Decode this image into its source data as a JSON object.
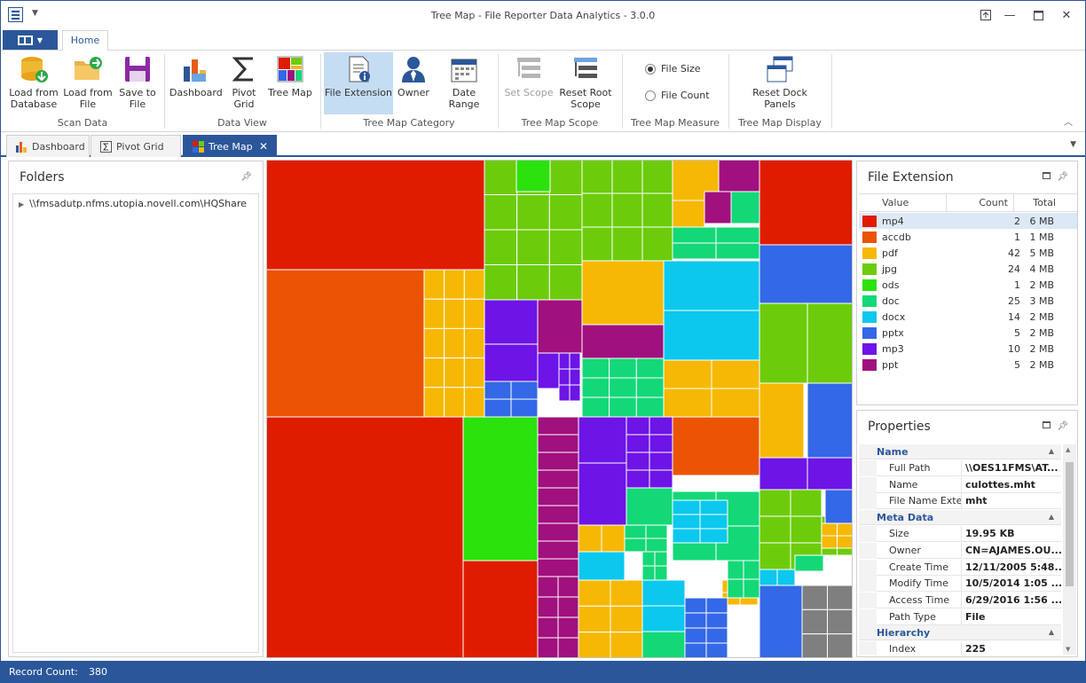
{
  "window": {
    "title": "Tree Map - File Reporter Data Analytics - 3.0.0"
  },
  "ribbon": {
    "tab_home": "Home",
    "scan_data": {
      "label": "Scan Data",
      "load_db": [
        "Load from",
        "Database"
      ],
      "load_file": [
        "Load from",
        "File"
      ],
      "save_file": [
        "Save to",
        "File"
      ]
    },
    "data_view": {
      "label": "Data View",
      "dashboard": "Dashboard",
      "pivot": [
        "Pivot",
        "Grid"
      ],
      "treemap": "Tree Map"
    },
    "category": {
      "label": "Tree Map Category",
      "file_extension": "File Extension",
      "owner": "Owner",
      "date_range": "Date Range"
    },
    "scope": {
      "label": "Tree Map Scope",
      "set_scope": "Set Scope",
      "reset_root": [
        "Reset Root",
        "Scope"
      ]
    },
    "measure": {
      "label": "Tree Map Measure",
      "file_size": "File Size",
      "file_count": "File Count",
      "selected": "File Size"
    },
    "display": {
      "label": "Tree Map Display",
      "reset_dock": [
        "Reset Dock",
        "Panels"
      ]
    }
  },
  "doc_tabs": [
    {
      "label": "Dashboard",
      "active": false
    },
    {
      "label": "Pivot Grid",
      "active": false
    },
    {
      "label": "Tree Map",
      "active": true
    }
  ],
  "folders_panel": {
    "title": "Folders",
    "root": "\\\\fmsadutp.nfms.utopia.novell.com\\HQShare"
  },
  "file_extension_panel": {
    "title": "File Extension",
    "columns": [
      "Value",
      "Count",
      "Total Size"
    ],
    "rows": [
      {
        "value": "mp4",
        "count": "2",
        "size": "6 MB",
        "color": "#e01c00",
        "selected": true
      },
      {
        "value": "accdb",
        "count": "1",
        "size": "1 MB",
        "color": "#eb5404"
      },
      {
        "value": "pdf",
        "count": "42",
        "size": "5 MB",
        "color": "#f6b805"
      },
      {
        "value": "jpg",
        "count": "24",
        "size": "4 MB",
        "color": "#6ccc0c"
      },
      {
        "value": "ods",
        "count": "1",
        "size": "2 MB",
        "color": "#2ce20c"
      },
      {
        "value": "doc",
        "count": "25",
        "size": "3 MB",
        "color": "#14d878"
      },
      {
        "value": "docx",
        "count": "14",
        "size": "2 MB",
        "color": "#0cc8ee"
      },
      {
        "value": "pptx",
        "count": "5",
        "size": "2 MB",
        "color": "#3368e6"
      },
      {
        "value": "mp3",
        "count": "10",
        "size": "2 MB",
        "color": "#6d14e6"
      },
      {
        "value": "ppt",
        "count": "5",
        "size": "2 MB",
        "color": "#a0107e"
      }
    ]
  },
  "properties_panel": {
    "title": "Properties",
    "rows": [
      {
        "type": "cat",
        "label": "Name"
      },
      {
        "type": "row",
        "key": "Full Path",
        "value": "\\\\OES11FMS\\AT..."
      },
      {
        "type": "row",
        "key": "Name",
        "value": "culottes.mht"
      },
      {
        "type": "row",
        "key": "File Name Extension",
        "value": "mht"
      },
      {
        "type": "cat",
        "label": "Meta Data"
      },
      {
        "type": "row",
        "key": "Size",
        "value": "19.95 KB"
      },
      {
        "type": "row",
        "key": "Owner",
        "value": "CN=AJAMES.OU..."
      },
      {
        "type": "row",
        "key": "Create Time",
        "value": "12/11/2005 5:48..."
      },
      {
        "type": "row",
        "key": "Modify Time",
        "value": "10/5/2014 1:05 ..."
      },
      {
        "type": "row",
        "key": "Access Time",
        "value": "6/29/2016 1:56 ..."
      },
      {
        "type": "row",
        "key": "Path Type",
        "value": "File"
      },
      {
        "type": "cat",
        "label": "Hierarchy"
      },
      {
        "type": "row",
        "key": "Index",
        "value": "225"
      }
    ]
  },
  "status": {
    "label": "Record Count:",
    "value": "380"
  }
}
